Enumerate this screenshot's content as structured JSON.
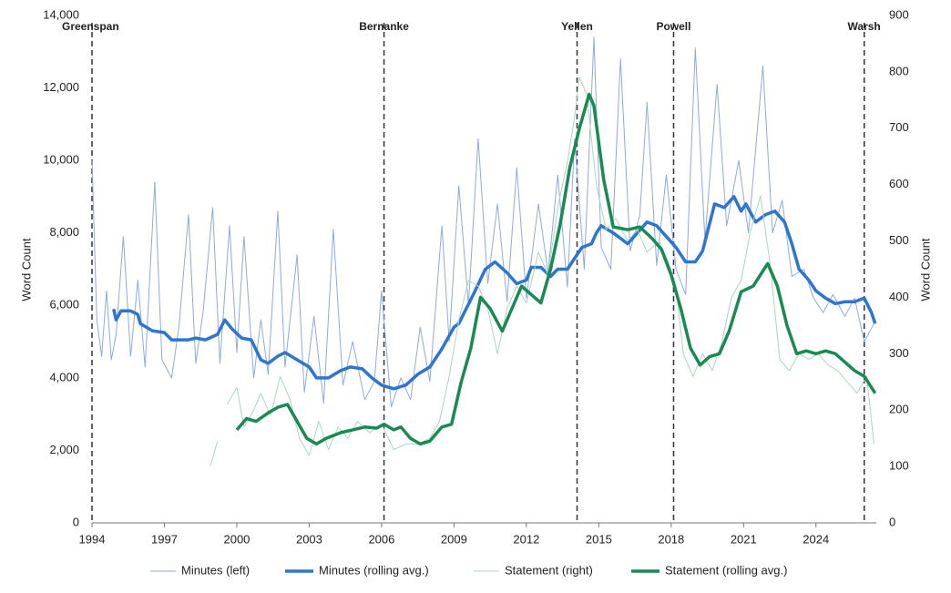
{
  "chart_data": {
    "type": "line",
    "xlim": [
      1994,
      2026.5
    ],
    "xticks": [
      1994,
      1997,
      2000,
      2003,
      2006,
      2009,
      2012,
      2015,
      2018,
      2021,
      2024
    ],
    "ylim": [
      0,
      14000
    ],
    "yticks": [
      0,
      {
        "value": 2000,
        "label": "2,000"
      },
      {
        "value": 4000,
        "label": "4,000"
      },
      {
        "value": 6000,
        "label": "6,000"
      },
      {
        "value": 8000,
        "label": "8,000"
      },
      {
        "value": 10000,
        "label": "10,000"
      },
      {
        "value": 12000,
        "label": "12,000"
      },
      {
        "value": 14000,
        "label": "14,000"
      }
    ],
    "y2lim": [
      0,
      900
    ],
    "y2ticks": [
      0,
      100,
      200,
      300,
      400,
      500,
      600,
      700,
      800,
      900
    ],
    "y_label": "Word Count",
    "y2_label": "Word Count",
    "legend": "bottom",
    "annotations": [
      {
        "label": "Greenspan",
        "x": 1994.0
      },
      {
        "label": "Bernanke",
        "x": 2006.1
      },
      {
        "label": "Yellen",
        "x": 2014.1
      },
      {
        "label": "Powell",
        "x": 2018.1
      },
      {
        "label": "Warsh",
        "x": 2026.0
      }
    ],
    "series": [
      {
        "name": "Minutes (left)",
        "color": "#8faadc",
        "line_width": 1,
        "axis": "y",
        "x": [
          1994.0,
          1994.2,
          1994.4,
          1994.6,
          1994.8,
          1995.0,
          1995.3,
          1995.6,
          1995.9,
          1996.2,
          1996.6,
          1996.9,
          1997.3,
          1997.6,
          1998.0,
          1998.3,
          1998.6,
          1999.0,
          1999.3,
          1999.7,
          2000.0,
          2000.3,
          2000.7,
          2001.0,
          2001.3,
          2001.7,
          2002.0,
          2002.5,
          2002.8,
          2003.2,
          2003.6,
          2004.0,
          2004.4,
          2004.8,
          2005.3,
          2005.7,
          2006.0,
          2006.4,
          2006.8,
          2007.2,
          2007.6,
          2008.0,
          2008.5,
          2008.8,
          2009.2,
          2009.6,
          2010.0,
          2010.4,
          2010.8,
          2011.2,
          2011.6,
          2012.0,
          2012.5,
          2012.9,
          2013.3,
          2013.7,
          2014.0,
          2014.4,
          2014.8,
          2015.1,
          2015.5,
          2015.9,
          2016.3,
          2016.7,
          2017.0,
          2017.4,
          2017.8,
          2018.2,
          2018.6,
          2019.0,
          2019.4,
          2019.9,
          2020.3,
          2020.8,
          2021.2,
          2021.8,
          2022.2,
          2022.6,
          2023.0,
          2023.5,
          2023.9,
          2024.3,
          2024.7,
          2025.2,
          2025.6,
          2026.0,
          2026.4
        ],
        "values": [
          10000,
          5600,
          4600,
          6400,
          4500,
          5200,
          7900,
          4600,
          6700,
          4300,
          9400,
          4500,
          4000,
          5400,
          8500,
          4400,
          5800,
          8700,
          4400,
          8200,
          4700,
          7900,
          4000,
          5600,
          4100,
          8600,
          4300,
          7400,
          3600,
          5700,
          3300,
          8100,
          3800,
          5000,
          3400,
          3900,
          6400,
          3200,
          4000,
          3400,
          5400,
          3900,
          8200,
          5000,
          9300,
          6000,
          10600,
          6600,
          8800,
          6100,
          9800,
          6200,
          8800,
          6900,
          9600,
          6500,
          10600,
          7000,
          13400,
          7600,
          7000,
          12800,
          7500,
          8500,
          11600,
          7100,
          9600,
          7000,
          6300,
          13100,
          7800,
          12100,
          8200,
          10000,
          8000,
          12600,
          8000,
          8900,
          6800,
          7000,
          6200,
          5800,
          6300,
          5700,
          6200,
          5000,
          5500
        ]
      },
      {
        "name": "Minutes (rolling avg.)",
        "color": "#2e75d0",
        "line_width": 3.5,
        "axis": "y",
        "x": [
          1994.9,
          1995.0,
          1995.2,
          1995.6,
          1995.9,
          1996.0,
          1996.5,
          1997.0,
          1997.3,
          1998.0,
          1998.3,
          1998.7,
          1999.2,
          1999.5,
          1999.8,
          2000.2,
          2000.6,
          2001.0,
          2001.3,
          2001.7,
          2002.0,
          2002.5,
          2003.0,
          2003.3,
          2003.8,
          2004.3,
          2004.7,
          2005.2,
          2005.6,
          2006.0,
          2006.5,
          2007.0,
          2007.5,
          2008.0,
          2008.5,
          2009.0,
          2009.2,
          2009.8,
          2010.3,
          2010.7,
          2011.2,
          2011.6,
          2012.0,
          2012.2,
          2012.6,
          2013.0,
          2013.3,
          2013.7,
          2014.0,
          2014.3,
          2014.7,
          2014.9,
          2015.1,
          2015.6,
          2016.2,
          2016.6,
          2017.0,
          2017.4,
          2017.8,
          2018.2,
          2018.6,
          2019.0,
          2019.3,
          2019.8,
          2020.2,
          2020.6,
          2020.9,
          2021.1,
          2021.5,
          2021.9,
          2022.3,
          2022.7,
          2023.0,
          2023.3,
          2023.7,
          2024.0,
          2024.4,
          2024.8,
          2025.2,
          2025.6,
          2026.0,
          2026.3,
          2026.45
        ],
        "values": [
          5900,
          5600,
          5850,
          5850,
          5750,
          5500,
          5300,
          5250,
          5050,
          5050,
          5100,
          5050,
          5200,
          5600,
          5350,
          5100,
          5050,
          4500,
          4400,
          4600,
          4700,
          4500,
          4300,
          4000,
          4000,
          4200,
          4300,
          4250,
          4000,
          3800,
          3700,
          3800,
          4100,
          4300,
          4800,
          5400,
          5500,
          6300,
          7000,
          7200,
          6900,
          6600,
          6700,
          7050,
          7050,
          6800,
          7000,
          7000,
          7300,
          7600,
          7700,
          8000,
          8200,
          8000,
          7700,
          8000,
          8300,
          8200,
          7900,
          7600,
          7200,
          7200,
          7500,
          8800,
          8700,
          9000,
          8600,
          8800,
          8300,
          8500,
          8600,
          8300,
          7700,
          7000,
          6700,
          6400,
          6200,
          6050,
          6100,
          6100,
          6200,
          5800,
          5500
        ]
      },
      {
        "name": "Statement (right)",
        "color": "#a9d8b8",
        "line_width": 1,
        "axis": "y2",
        "x": [
          1998.9,
          1999.2,
          1999.4,
          1999.6,
          2000.0,
          2000.3,
          2000.7,
          2001.0,
          2001.4,
          2001.8,
          2002.2,
          2002.6,
          2003.0,
          2003.4,
          2003.8,
          2004.2,
          2004.6,
          2005.0,
          2005.5,
          2006.0,
          2006.5,
          2007.0,
          2007.5,
          2008.0,
          2008.4,
          2008.8,
          2009.2,
          2009.6,
          2010.0,
          2010.4,
          2010.8,
          2011.2,
          2011.6,
          2012.0,
          2012.5,
          2012.9,
          2013.3,
          2013.7,
          2014.0,
          2014.2,
          2014.5,
          2014.9,
          2015.3,
          2015.7,
          2016.2,
          2016.6,
          2017.0,
          2017.5,
          2017.9,
          2018.2,
          2018.5,
          2018.9,
          2019.3,
          2019.7,
          2020.1,
          2020.5,
          2020.9,
          2021.3,
          2021.7,
          2022.1,
          2022.5,
          2022.9,
          2023.3,
          2023.7,
          2024.1,
          2024.5,
          2024.9,
          2025.3,
          2025.7,
          2026.1,
          2026.4
        ],
        "values": [
          100,
          145,
          null,
          210,
          240,
          170,
          200,
          230,
          190,
          260,
          220,
          150,
          120,
          180,
          130,
          170,
          150,
          180,
          160,
          175,
          130,
          140,
          140,
          150,
          180,
          260,
          360,
          430,
          420,
          380,
          300,
          380,
          420,
          390,
          480,
          440,
          560,
          640,
          720,
          790,
          760,
          600,
          520,
          540,
          500,
          520,
          480,
          500,
          460,
          420,
          300,
          260,
          300,
          270,
          320,
          400,
          430,
          520,
          580,
          460,
          290,
          270,
          300,
          290,
          300,
          280,
          270,
          250,
          230,
          260,
          140
        ]
      },
      {
        "name": "Statement (rolling avg.)",
        "color": "#1a8a55",
        "line_width": 3.5,
        "axis": "y2",
        "x": [
          2000.0,
          2000.4,
          2000.8,
          2001.3,
          2001.7,
          2002.1,
          2002.5,
          2002.9,
          2003.3,
          2003.7,
          2004.3,
          2004.8,
          2005.3,
          2005.8,
          2006.1,
          2006.5,
          2006.8,
          2007.2,
          2007.6,
          2008.0,
          2008.5,
          2008.9,
          2009.3,
          2009.7,
          2010.1,
          2010.5,
          2011.0,
          2011.3,
          2011.8,
          2012.2,
          2012.6,
          2013.0,
          2013.4,
          2013.8,
          2014.2,
          2014.6,
          2014.8,
          2015.2,
          2015.6,
          2016.2,
          2016.7,
          2017.2,
          2017.6,
          2018.0,
          2018.4,
          2018.8,
          2019.2,
          2019.6,
          2020.0,
          2020.4,
          2020.9,
          2021.4,
          2021.7,
          2022.0,
          2022.4,
          2022.8,
          2023.2,
          2023.6,
          2024.0,
          2024.4,
          2024.8,
          2025.2,
          2025.6,
          2026.0,
          2026.45
        ],
        "values": [
          165,
          185,
          180,
          195,
          205,
          210,
          180,
          150,
          140,
          150,
          160,
          165,
          170,
          168,
          175,
          165,
          170,
          150,
          140,
          145,
          170,
          175,
          250,
          310,
          400,
          380,
          340,
          370,
          420,
          405,
          390,
          450,
          530,
          630,
          700,
          760,
          740,
          610,
          525,
          520,
          525,
          505,
          485,
          440,
          380,
          310,
          280,
          295,
          300,
          340,
          410,
          420,
          440,
          460,
          420,
          350,
          300,
          305,
          300,
          305,
          300,
          285,
          270,
          260,
          230
        ]
      }
    ]
  }
}
